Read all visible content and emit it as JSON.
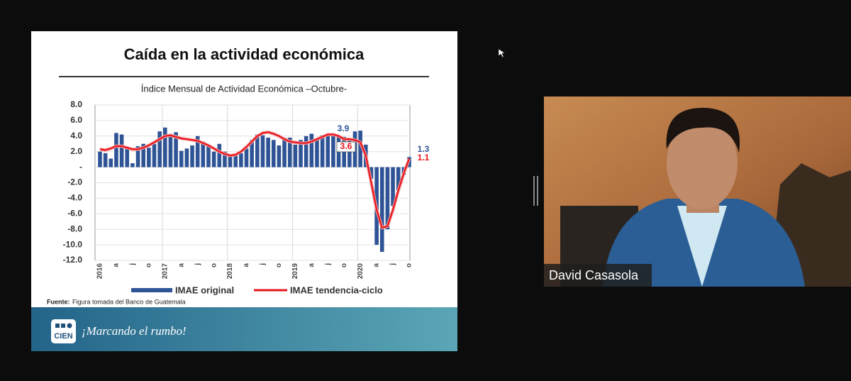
{
  "slide": {
    "title": "Caída en la actividad económica",
    "source_label": "Fuente:",
    "source_text": "Figura tomada del Banco de Guatemala",
    "logo": "CIEN",
    "slogan": "¡Marcando el rumbo!"
  },
  "video": {
    "participant_name": "David Casasola"
  },
  "chart_data": {
    "type": "bar_line",
    "title": "Índice Mensual de Actividad Económica –Octubre-",
    "categories": [
      "2016",
      null,
      null,
      "a",
      null,
      null,
      "j",
      null,
      null,
      "o",
      null,
      null,
      "2017",
      null,
      null,
      "a",
      null,
      null,
      "j",
      null,
      null,
      "o",
      null,
      null,
      "2018",
      null,
      null,
      "a",
      null,
      null,
      "j",
      null,
      null,
      "o",
      null,
      null,
      "2019",
      null,
      null,
      "a",
      null,
      null,
      "j",
      null,
      null,
      "o",
      null,
      null,
      "2020",
      null,
      null,
      "a",
      null,
      null,
      "j",
      null,
      null,
      "o"
    ],
    "series": [
      {
        "name": "IMAE original",
        "type": "bar",
        "color": "#2f5496",
        "values": [
          2.0,
          1.8,
          1.1,
          4.4,
          4.2,
          2.5,
          0.5,
          2.7,
          3.0,
          2.5,
          3.0,
          4.6,
          5.1,
          4.3,
          4.5,
          2.1,
          2.4,
          2.8,
          4.0,
          3.3,
          2.8,
          2.0,
          3.0,
          2.0,
          1.4,
          1.5,
          1.8,
          2.4,
          3.5,
          4.2,
          4.1,
          3.8,
          3.5,
          2.8,
          3.8,
          3.8,
          2.9,
          3.5,
          4.0,
          4.3,
          3.6,
          4.1,
          4.0,
          4.0,
          4.1,
          3.9,
          3.6,
          4.6,
          4.7,
          2.9,
          -1.5,
          -10.0,
          -10.9,
          -8.0,
          -5.0,
          -3.0,
          -1.0,
          1.3
        ]
      },
      {
        "name": "IMAE tendencia-ciclo",
        "type": "line",
        "color": "#e8141c",
        "values": [
          2.3,
          2.2,
          2.4,
          2.7,
          2.7,
          2.5,
          2.3,
          2.3,
          2.5,
          2.8,
          3.2,
          3.6,
          4.0,
          4.1,
          3.9,
          3.7,
          3.6,
          3.5,
          3.4,
          3.1,
          2.8,
          2.4,
          2.0,
          1.7,
          1.5,
          1.6,
          2.0,
          2.6,
          3.3,
          4.0,
          4.4,
          4.5,
          4.3,
          4.0,
          3.6,
          3.3,
          3.2,
          3.1,
          3.1,
          3.3,
          3.6,
          3.9,
          4.2,
          4.2,
          4.0,
          3.6,
          3.6,
          3.5,
          3.2,
          1.5,
          -2.0,
          -5.5,
          -7.8,
          -7.6,
          -5.5,
          -3.0,
          -0.8,
          1.1
        ]
      }
    ],
    "annotations": [
      "3.9",
      "3.6",
      "1.3",
      "1.1"
    ],
    "ylim": [
      -12,
      8
    ],
    "yticks": [
      {
        "value": 8,
        "label": "8.0"
      },
      {
        "value": 6,
        "label": "6.0"
      },
      {
        "value": 4,
        "label": "4.0"
      },
      {
        "value": 2,
        "label": "2.0"
      },
      {
        "value": 0,
        "label": "-"
      },
      {
        "value": -2,
        "label": "-2.0"
      },
      {
        "value": -4,
        "label": "-4.0"
      },
      {
        "value": -6,
        "label": "-6.0"
      },
      {
        "value": -8,
        "label": "-8.0"
      },
      {
        "value": -10,
        "label": "-10.0"
      },
      {
        "value": -12,
        "label": "-12.0"
      }
    ],
    "grid": true
  }
}
